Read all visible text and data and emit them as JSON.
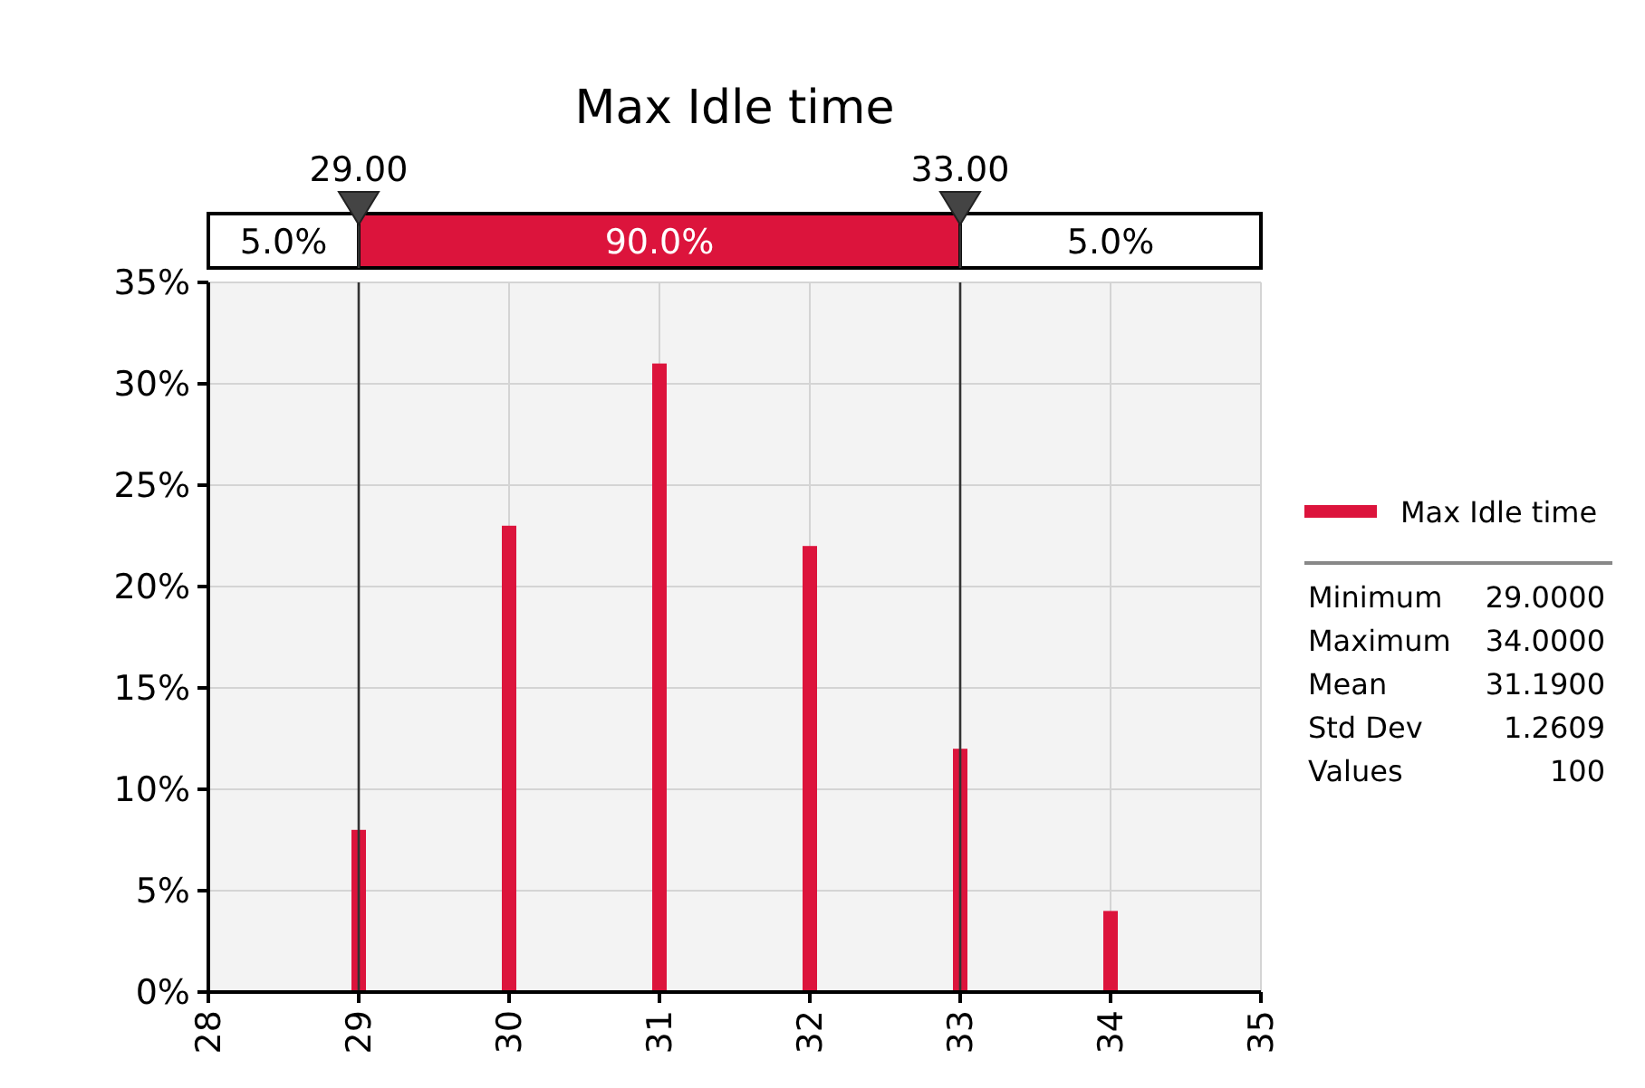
{
  "chart_data": {
    "type": "bar",
    "title": "Max Idle time",
    "x": [
      29,
      30,
      31,
      32,
      33,
      34
    ],
    "series": [
      {
        "name": "Max Idle time",
        "color": "#dc143c",
        "values": [
          8,
          23,
          31,
          22,
          12,
          4
        ]
      }
    ],
    "xlim": [
      28,
      35
    ],
    "xticks": [
      28,
      29,
      30,
      31,
      32,
      33,
      34,
      35
    ],
    "ylim": [
      0,
      35
    ],
    "yticks": [
      {
        "value": 0,
        "label": "0%"
      },
      {
        "value": 5,
        "label": "5%"
      },
      {
        "value": 10,
        "label": "10%"
      },
      {
        "value": 15,
        "label": "15%"
      },
      {
        "value": 20,
        "label": "20%"
      },
      {
        "value": 25,
        "label": "25%"
      },
      {
        "value": 30,
        "label": "30%"
      },
      {
        "value": 35,
        "label": "35%"
      }
    ],
    "ref_lines": [
      {
        "axis": "x",
        "value": 29,
        "label": "29.00",
        "color": "#333333"
      },
      {
        "axis": "x",
        "value": 33,
        "label": "33.00",
        "color": "#333333"
      }
    ],
    "annotations": [
      "5.0%",
      "90.0%",
      "5.0%",
      "Minimum 29.0000",
      "Maximum 34.0000",
      "Mean 31.1900",
      "Std Dev 1.2609",
      "Values 100"
    ],
    "grid": true,
    "legend": "right"
  }
}
